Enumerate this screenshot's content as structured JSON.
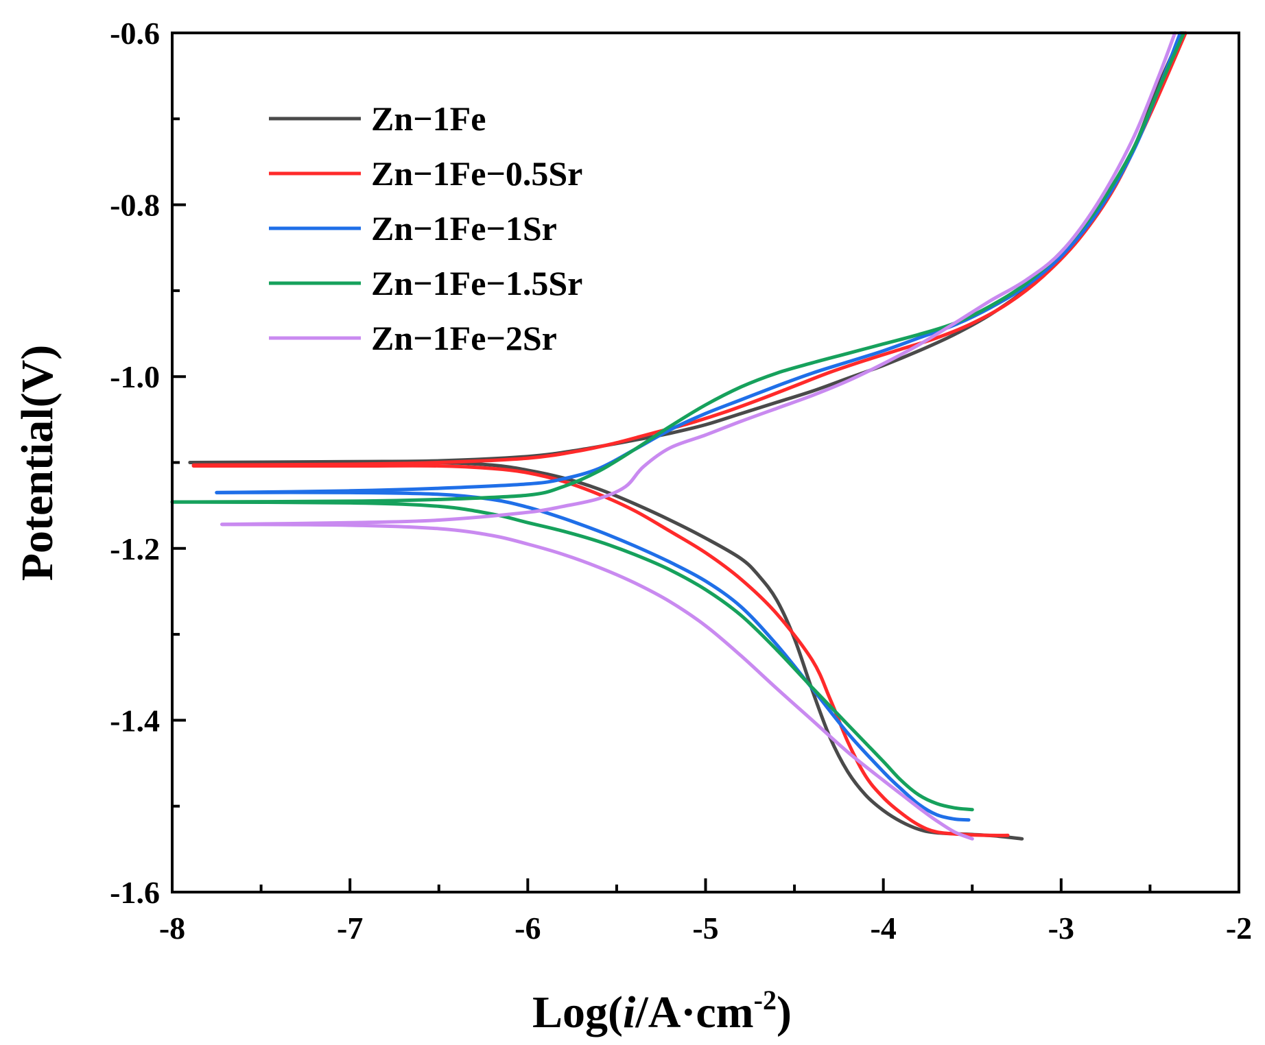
{
  "chart_data": {
    "type": "line",
    "title": "",
    "xlabel": {
      "prefix": "Log(",
      "italic": "i",
      "middle": "/A·cm",
      "sup": "-2",
      "suffix": ")"
    },
    "ylabel": "Potential(V)",
    "xlim": [
      -8,
      -2
    ],
    "ylim": [
      -1.6,
      -0.6
    ],
    "x_ticks": [
      -8,
      -7,
      -6,
      -5,
      -4,
      -3,
      -2
    ],
    "x_tick_labels": [
      "-8",
      "-7",
      "-6",
      "-5",
      "-4",
      "-3",
      "-2"
    ],
    "x_minor_ticks": [
      -7.5,
      -6.5,
      -5.5,
      -4.5,
      -3.5,
      -2.5
    ],
    "y_ticks": [
      -1.6,
      -1.4,
      -1.2,
      -1.0,
      -0.8,
      -0.6
    ],
    "y_tick_labels": [
      "-1.6",
      "-1.4",
      "-1.2",
      "-1.0",
      "-0.8",
      "-0.6"
    ],
    "y_minor_ticks": [
      -1.5,
      -1.3,
      -1.1,
      -0.9,
      -0.7
    ],
    "grid": false,
    "legend_position": "top-left",
    "series": [
      {
        "name": "Zn−1Fe",
        "color": "#4a4a4a",
        "anodic": [
          [
            -7.9,
            -1.1
          ],
          [
            -7.0,
            -1.099
          ],
          [
            -6.5,
            -1.098
          ],
          [
            -6.0,
            -1.093
          ],
          [
            -5.7,
            -1.085
          ],
          [
            -5.4,
            -1.074
          ],
          [
            -5.2,
            -1.066
          ],
          [
            -5.0,
            -1.056
          ],
          [
            -4.8,
            -1.043
          ],
          [
            -4.6,
            -1.03
          ],
          [
            -4.4,
            -1.017
          ],
          [
            -4.2,
            -1.002
          ],
          [
            -4.0,
            -0.987
          ],
          [
            -3.8,
            -0.97
          ],
          [
            -3.6,
            -0.951
          ],
          [
            -3.4,
            -0.928
          ],
          [
            -3.2,
            -0.899
          ],
          [
            -3.0,
            -0.86
          ],
          [
            -2.8,
            -0.808
          ],
          [
            -2.6,
            -0.738
          ],
          [
            -2.45,
            -0.66
          ],
          [
            -2.32,
            -0.6
          ]
        ],
        "cathodic": [
          [
            -7.9,
            -1.1
          ],
          [
            -7.0,
            -1.1
          ],
          [
            -6.5,
            -1.1
          ],
          [
            -6.2,
            -1.103
          ],
          [
            -6.0,
            -1.109
          ],
          [
            -5.8,
            -1.118
          ],
          [
            -5.6,
            -1.131
          ],
          [
            -5.4,
            -1.148
          ],
          [
            -5.2,
            -1.167
          ],
          [
            -5.0,
            -1.188
          ],
          [
            -4.8,
            -1.212
          ],
          [
            -4.7,
            -1.232
          ],
          [
            -4.6,
            -1.26
          ],
          [
            -4.5,
            -1.305
          ],
          [
            -4.4,
            -1.365
          ],
          [
            -4.3,
            -1.42
          ],
          [
            -4.2,
            -1.46
          ],
          [
            -4.1,
            -1.487
          ],
          [
            -4.0,
            -1.505
          ],
          [
            -3.9,
            -1.518
          ],
          [
            -3.8,
            -1.527
          ],
          [
            -3.7,
            -1.531
          ],
          [
            -3.5,
            -1.533
          ],
          [
            -3.35,
            -1.535
          ],
          [
            -3.22,
            -1.538
          ]
        ]
      },
      {
        "name": "Zn−1Fe−0.5Sr",
        "color": "#ff2a2a",
        "anodic": [
          [
            -7.88,
            -1.103
          ],
          [
            -7.0,
            -1.102
          ],
          [
            -6.5,
            -1.1
          ],
          [
            -6.0,
            -1.095
          ],
          [
            -5.7,
            -1.086
          ],
          [
            -5.5,
            -1.077
          ],
          [
            -5.3,
            -1.066
          ],
          [
            -5.1,
            -1.055
          ],
          [
            -4.9,
            -1.042
          ],
          [
            -4.7,
            -1.027
          ],
          [
            -4.5,
            -1.011
          ],
          [
            -4.3,
            -0.995
          ],
          [
            -4.1,
            -0.981
          ],
          [
            -3.9,
            -0.968
          ],
          [
            -3.7,
            -0.955
          ],
          [
            -3.5,
            -0.938
          ],
          [
            -3.3,
            -0.915
          ],
          [
            -3.1,
            -0.883
          ],
          [
            -2.9,
            -0.84
          ],
          [
            -2.7,
            -0.78
          ],
          [
            -2.5,
            -0.695
          ],
          [
            -2.3,
            -0.6
          ]
        ],
        "cathodic": [
          [
            -7.88,
            -1.104
          ],
          [
            -7.0,
            -1.104
          ],
          [
            -6.5,
            -1.104
          ],
          [
            -6.2,
            -1.107
          ],
          [
            -6.0,
            -1.112
          ],
          [
            -5.8,
            -1.122
          ],
          [
            -5.6,
            -1.137
          ],
          [
            -5.4,
            -1.156
          ],
          [
            -5.2,
            -1.18
          ],
          [
            -5.0,
            -1.205
          ],
          [
            -4.8,
            -1.236
          ],
          [
            -4.6,
            -1.276
          ],
          [
            -4.4,
            -1.33
          ],
          [
            -4.3,
            -1.375
          ],
          [
            -4.2,
            -1.425
          ],
          [
            -4.1,
            -1.465
          ],
          [
            -4.0,
            -1.49
          ],
          [
            -3.9,
            -1.508
          ],
          [
            -3.8,
            -1.522
          ],
          [
            -3.7,
            -1.53
          ],
          [
            -3.55,
            -1.533
          ],
          [
            -3.4,
            -1.534
          ],
          [
            -3.3,
            -1.534
          ]
        ]
      },
      {
        "name": "Zn−1Fe−1Sr",
        "color": "#1f6fe8",
        "anodic": [
          [
            -7.75,
            -1.135
          ],
          [
            -7.0,
            -1.133
          ],
          [
            -6.5,
            -1.13
          ],
          [
            -6.0,
            -1.125
          ],
          [
            -5.8,
            -1.119
          ],
          [
            -5.6,
            -1.107
          ],
          [
            -5.4,
            -1.085
          ],
          [
            -5.2,
            -1.062
          ],
          [
            -5.0,
            -1.043
          ],
          [
            -4.8,
            -1.027
          ],
          [
            -4.6,
            -1.011
          ],
          [
            -4.4,
            -0.996
          ],
          [
            -4.2,
            -0.983
          ],
          [
            -4.0,
            -0.97
          ],
          [
            -3.8,
            -0.955
          ],
          [
            -3.6,
            -0.94
          ],
          [
            -3.4,
            -0.92
          ],
          [
            -3.2,
            -0.895
          ],
          [
            -3.0,
            -0.86
          ],
          [
            -2.8,
            -0.81
          ],
          [
            -2.6,
            -0.74
          ],
          [
            -2.45,
            -0.665
          ],
          [
            -2.33,
            -0.6
          ]
        ],
        "cathodic": [
          [
            -7.75,
            -1.135
          ],
          [
            -7.0,
            -1.135
          ],
          [
            -6.5,
            -1.137
          ],
          [
            -6.2,
            -1.143
          ],
          [
            -6.0,
            -1.152
          ],
          [
            -5.8,
            -1.165
          ],
          [
            -5.6,
            -1.18
          ],
          [
            -5.4,
            -1.197
          ],
          [
            -5.2,
            -1.216
          ],
          [
            -5.0,
            -1.238
          ],
          [
            -4.8,
            -1.268
          ],
          [
            -4.6,
            -1.312
          ],
          [
            -4.4,
            -1.363
          ],
          [
            -4.2,
            -1.415
          ],
          [
            -4.0,
            -1.46
          ],
          [
            -3.9,
            -1.48
          ],
          [
            -3.8,
            -1.498
          ],
          [
            -3.7,
            -1.51
          ],
          [
            -3.6,
            -1.515
          ],
          [
            -3.52,
            -1.516
          ]
        ]
      },
      {
        "name": "Zn−1Fe−1.5Sr",
        "color": "#16a15c",
        "anodic": [
          [
            -8.0,
            -1.146
          ],
          [
            -7.0,
            -1.145
          ],
          [
            -6.5,
            -1.143
          ],
          [
            -6.0,
            -1.138
          ],
          [
            -5.8,
            -1.128
          ],
          [
            -5.6,
            -1.11
          ],
          [
            -5.4,
            -1.085
          ],
          [
            -5.2,
            -1.058
          ],
          [
            -5.0,
            -1.033
          ],
          [
            -4.8,
            -1.012
          ],
          [
            -4.6,
            -0.996
          ],
          [
            -4.4,
            -0.984
          ],
          [
            -4.2,
            -0.973
          ],
          [
            -4.0,
            -0.962
          ],
          [
            -3.8,
            -0.951
          ],
          [
            -3.6,
            -0.938
          ],
          [
            -3.4,
            -0.918
          ],
          [
            -3.2,
            -0.892
          ],
          [
            -3.0,
            -0.855
          ],
          [
            -2.8,
            -0.805
          ],
          [
            -2.6,
            -0.737
          ],
          [
            -2.45,
            -0.665
          ],
          [
            -2.31,
            -0.6
          ]
        ],
        "cathodic": [
          [
            -8.0,
            -1.146
          ],
          [
            -7.0,
            -1.147
          ],
          [
            -6.5,
            -1.151
          ],
          [
            -6.2,
            -1.16
          ],
          [
            -6.0,
            -1.17
          ],
          [
            -5.8,
            -1.18
          ],
          [
            -5.6,
            -1.192
          ],
          [
            -5.4,
            -1.207
          ],
          [
            -5.2,
            -1.225
          ],
          [
            -5.0,
            -1.248
          ],
          [
            -4.8,
            -1.278
          ],
          [
            -4.6,
            -1.318
          ],
          [
            -4.4,
            -1.362
          ],
          [
            -4.2,
            -1.405
          ],
          [
            -4.0,
            -1.448
          ],
          [
            -3.9,
            -1.47
          ],
          [
            -3.8,
            -1.487
          ],
          [
            -3.7,
            -1.497
          ],
          [
            -3.6,
            -1.502
          ],
          [
            -3.5,
            -1.504
          ]
        ]
      },
      {
        "name": "Zn−1Fe−2Sr",
        "color": "#c98af0",
        "anodic": [
          [
            -7.72,
            -1.172
          ],
          [
            -7.0,
            -1.17
          ],
          [
            -6.5,
            -1.167
          ],
          [
            -6.0,
            -1.158
          ],
          [
            -5.8,
            -1.151
          ],
          [
            -5.6,
            -1.142
          ],
          [
            -5.45,
            -1.128
          ],
          [
            -5.35,
            -1.105
          ],
          [
            -5.2,
            -1.083
          ],
          [
            -5.0,
            -1.068
          ],
          [
            -4.8,
            -1.052
          ],
          [
            -4.6,
            -1.037
          ],
          [
            -4.4,
            -1.022
          ],
          [
            -4.2,
            -1.005
          ],
          [
            -4.0,
            -0.985
          ],
          [
            -3.8,
            -0.963
          ],
          [
            -3.6,
            -0.938
          ],
          [
            -3.4,
            -0.912
          ],
          [
            -3.2,
            -0.888
          ],
          [
            -3.0,
            -0.855
          ],
          [
            -2.8,
            -0.8
          ],
          [
            -2.6,
            -0.725
          ],
          [
            -2.45,
            -0.65
          ],
          [
            -2.36,
            -0.6
          ]
        ],
        "cathodic": [
          [
            -7.72,
            -1.172
          ],
          [
            -7.0,
            -1.173
          ],
          [
            -6.5,
            -1.177
          ],
          [
            -6.2,
            -1.185
          ],
          [
            -6.0,
            -1.195
          ],
          [
            -5.8,
            -1.207
          ],
          [
            -5.6,
            -1.222
          ],
          [
            -5.4,
            -1.24
          ],
          [
            -5.2,
            -1.262
          ],
          [
            -5.0,
            -1.29
          ],
          [
            -4.8,
            -1.325
          ],
          [
            -4.6,
            -1.363
          ],
          [
            -4.4,
            -1.4
          ],
          [
            -4.2,
            -1.437
          ],
          [
            -4.0,
            -1.47
          ],
          [
            -3.9,
            -1.486
          ],
          [
            -3.8,
            -1.502
          ],
          [
            -3.7,
            -1.517
          ],
          [
            -3.6,
            -1.53
          ],
          [
            -3.5,
            -1.538
          ]
        ]
      }
    ]
  }
}
